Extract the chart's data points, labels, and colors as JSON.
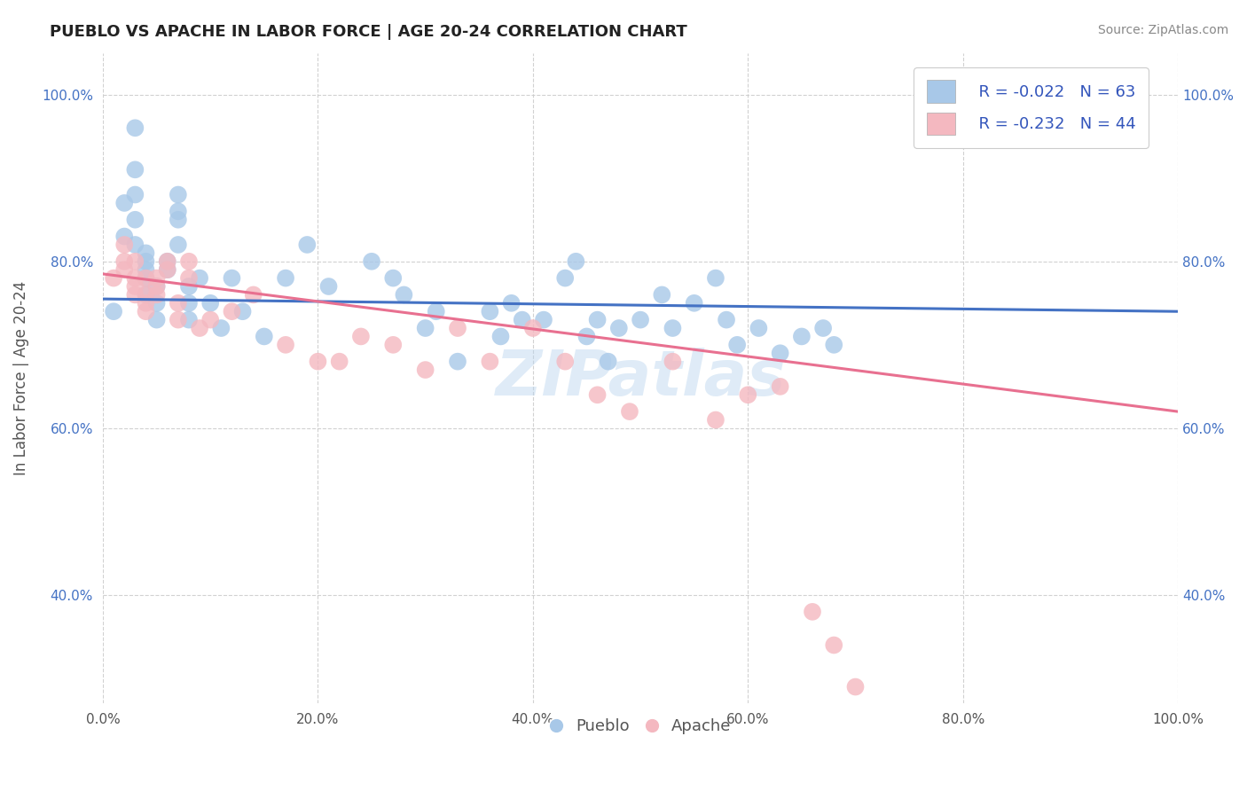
{
  "title": "PUEBLO VS APACHE IN LABOR FORCE | AGE 20-24 CORRELATION CHART",
  "source_text": "Source: ZipAtlas.com",
  "ylabel": "In Labor Force | Age 20-24",
  "xlim": [
    0.0,
    1.0
  ],
  "ylim": [
    0.27,
    1.05
  ],
  "xticks": [
    0.0,
    0.2,
    0.4,
    0.6,
    0.8,
    1.0
  ],
  "yticks": [
    0.4,
    0.6,
    0.8,
    1.0
  ],
  "xtick_labels": [
    "0.0%",
    "20.0%",
    "40.0%",
    "60.0%",
    "80.0%",
    "100.0%"
  ],
  "ytick_labels": [
    "40.0%",
    "60.0%",
    "80.0%",
    "100.0%"
  ],
  "pueblo_color": "#a8c8e8",
  "apache_color": "#f4b8c0",
  "pueblo_line_color": "#4472c4",
  "apache_line_color": "#e87090",
  "pueblo_R": -0.022,
  "pueblo_N": 63,
  "apache_R": -0.232,
  "apache_N": 44,
  "background_color": "#ffffff",
  "grid_color": "#cccccc",
  "legend_label_color": "#3355bb",
  "pueblo_trend_start": 0.755,
  "pueblo_trend_end": 0.74,
  "apache_trend_start": 0.785,
  "apache_trend_end": 0.62,
  "pueblo_x": [
    0.01,
    0.02,
    0.02,
    0.03,
    0.03,
    0.03,
    0.03,
    0.03,
    0.04,
    0.04,
    0.04,
    0.04,
    0.04,
    0.05,
    0.05,
    0.05,
    0.06,
    0.06,
    0.07,
    0.07,
    0.07,
    0.07,
    0.08,
    0.08,
    0.08,
    0.09,
    0.1,
    0.11,
    0.12,
    0.13,
    0.15,
    0.17,
    0.19,
    0.21,
    0.25,
    0.27,
    0.28,
    0.3,
    0.31,
    0.33,
    0.36,
    0.37,
    0.38,
    0.39,
    0.41,
    0.43,
    0.44,
    0.45,
    0.46,
    0.47,
    0.48,
    0.5,
    0.52,
    0.53,
    0.55,
    0.57,
    0.58,
    0.59,
    0.61,
    0.63,
    0.65,
    0.67,
    0.68
  ],
  "pueblo_y": [
    0.74,
    0.83,
    0.87,
    0.96,
    0.88,
    0.91,
    0.82,
    0.85,
    0.8,
    0.81,
    0.78,
    0.79,
    0.76,
    0.77,
    0.75,
    0.73,
    0.8,
    0.79,
    0.88,
    0.86,
    0.85,
    0.82,
    0.77,
    0.75,
    0.73,
    0.78,
    0.75,
    0.72,
    0.78,
    0.74,
    0.71,
    0.78,
    0.82,
    0.77,
    0.8,
    0.78,
    0.76,
    0.72,
    0.74,
    0.68,
    0.74,
    0.71,
    0.75,
    0.73,
    0.73,
    0.78,
    0.8,
    0.71,
    0.73,
    0.68,
    0.72,
    0.73,
    0.76,
    0.72,
    0.75,
    0.78,
    0.73,
    0.7,
    0.72,
    0.69,
    0.71,
    0.72,
    0.7
  ],
  "apache_x": [
    0.01,
    0.02,
    0.02,
    0.02,
    0.03,
    0.03,
    0.03,
    0.03,
    0.04,
    0.04,
    0.04,
    0.04,
    0.05,
    0.05,
    0.05,
    0.06,
    0.06,
    0.07,
    0.07,
    0.08,
    0.08,
    0.09,
    0.1,
    0.12,
    0.14,
    0.17,
    0.2,
    0.22,
    0.24,
    0.27,
    0.3,
    0.33,
    0.36,
    0.4,
    0.43,
    0.46,
    0.49,
    0.53,
    0.57,
    0.6,
    0.63,
    0.66,
    0.68,
    0.7
  ],
  "apache_y": [
    0.78,
    0.82,
    0.8,
    0.79,
    0.8,
    0.78,
    0.77,
    0.76,
    0.78,
    0.76,
    0.75,
    0.74,
    0.78,
    0.76,
    0.77,
    0.79,
    0.8,
    0.75,
    0.73,
    0.78,
    0.8,
    0.72,
    0.73,
    0.74,
    0.76,
    0.7,
    0.68,
    0.68,
    0.71,
    0.7,
    0.67,
    0.72,
    0.68,
    0.72,
    0.68,
    0.64,
    0.62,
    0.68,
    0.61,
    0.64,
    0.65,
    0.38,
    0.34,
    0.29
  ]
}
